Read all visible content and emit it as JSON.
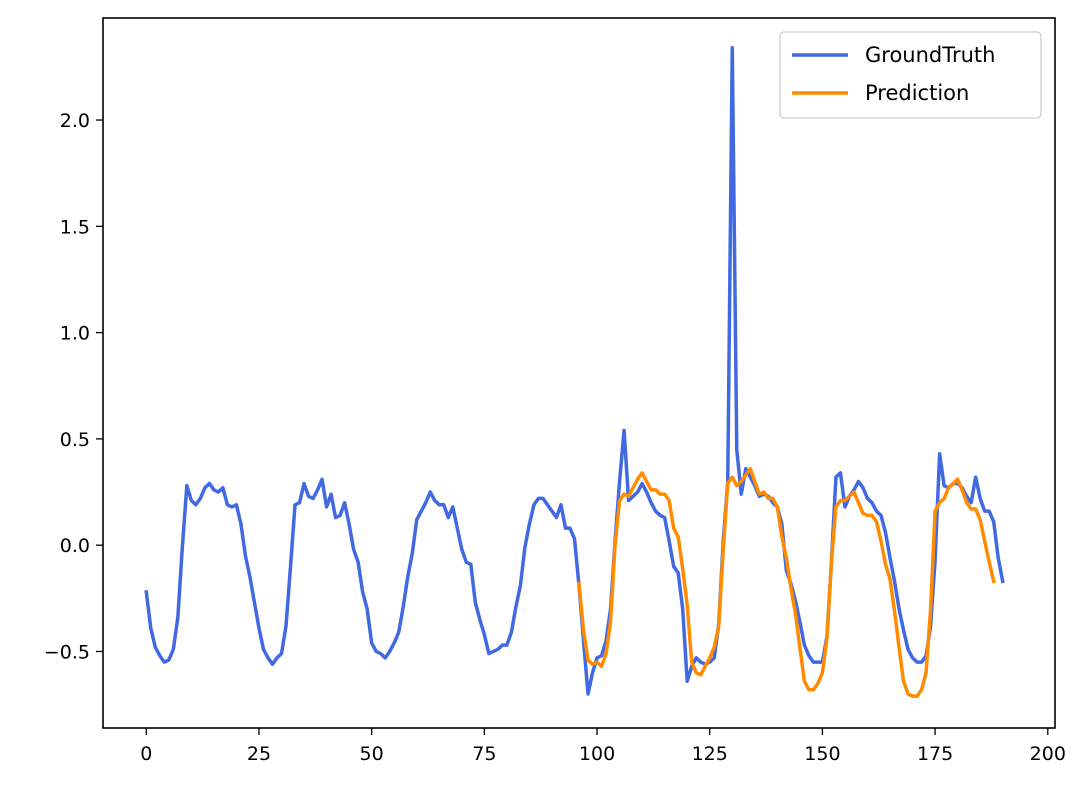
{
  "chart_data": {
    "type": "line",
    "title": "",
    "xlabel": "",
    "ylabel": "",
    "xlim": [
      -9.6,
      201.6
    ],
    "ylim": [
      -0.86,
      2.48
    ],
    "xticks": [
      0,
      25,
      50,
      75,
      100,
      125,
      150,
      175,
      200
    ],
    "yticks": [
      -0.5,
      0.0,
      0.5,
      1.0,
      1.5,
      2.0
    ],
    "xtick_labels": [
      "0",
      "25",
      "50",
      "75",
      "100",
      "125",
      "150",
      "175",
      "200"
    ],
    "ytick_labels": [
      "−0.5",
      "0.0",
      "0.5",
      "1.0",
      "1.5",
      "2.0"
    ],
    "grid": false,
    "legend_position": "top-right",
    "series": [
      {
        "name": "GroundTruth",
        "color": "#4169e1",
        "x_start": 0,
        "values": [
          -0.22,
          -0.39,
          -0.48,
          -0.52,
          -0.55,
          -0.54,
          -0.49,
          -0.34,
          -0.01,
          0.28,
          0.21,
          0.19,
          0.22,
          0.27,
          0.29,
          0.26,
          0.25,
          0.27,
          0.19,
          0.18,
          0.19,
          0.1,
          -0.05,
          -0.15,
          -0.27,
          -0.39,
          -0.49,
          -0.53,
          -0.56,
          -0.53,
          -0.51,
          -0.38,
          -0.1,
          0.19,
          0.2,
          0.29,
          0.23,
          0.22,
          0.26,
          0.31,
          0.18,
          0.24,
          0.13,
          0.14,
          0.2,
          0.1,
          -0.02,
          -0.08,
          -0.22,
          -0.3,
          -0.46,
          -0.5,
          -0.51,
          -0.53,
          -0.5,
          -0.46,
          -0.41,
          -0.29,
          -0.15,
          -0.04,
          0.12,
          0.16,
          0.2,
          0.25,
          0.21,
          0.19,
          0.19,
          0.13,
          0.18,
          0.08,
          -0.02,
          -0.08,
          -0.09,
          -0.27,
          -0.35,
          -0.42,
          -0.51,
          -0.5,
          -0.49,
          -0.47,
          -0.47,
          -0.41,
          -0.29,
          -0.19,
          -0.01,
          0.1,
          0.19,
          0.22,
          0.22,
          0.19,
          0.16,
          0.13,
          0.19,
          0.08,
          0.08,
          0.03,
          -0.19,
          -0.45,
          -0.7,
          -0.6,
          -0.53,
          -0.52,
          -0.45,
          -0.3,
          0.02,
          0.3,
          0.54,
          0.21,
          0.23,
          0.25,
          0.29,
          0.25,
          0.2,
          0.16,
          0.14,
          0.13,
          0.02,
          -0.1,
          -0.13,
          -0.3,
          -0.64,
          -0.57,
          -0.53,
          -0.55,
          -0.56,
          -0.55,
          -0.53,
          -0.37,
          0.02,
          0.3,
          2.34,
          0.45,
          0.24,
          0.36,
          0.32,
          0.28,
          0.23,
          0.24,
          0.23,
          0.2,
          0.18,
          0.1,
          -0.12,
          -0.18,
          -0.26,
          -0.36,
          -0.47,
          -0.52,
          -0.55,
          -0.55,
          -0.55,
          -0.43,
          -0.08,
          0.32,
          0.34,
          0.18,
          0.23,
          0.26,
          0.3,
          0.27,
          0.22,
          0.2,
          0.16,
          0.14,
          0.06,
          -0.06,
          -0.17,
          -0.3,
          -0.4,
          -0.49,
          -0.53,
          -0.55,
          -0.55,
          -0.52,
          -0.38,
          -0.07,
          0.43,
          0.28,
          0.27,
          0.29,
          0.29,
          0.27,
          0.23,
          0.2,
          0.32,
          0.22,
          0.16,
          0.16,
          0.11,
          -0.06,
          -0.17
        ]
      },
      {
        "name": "Prediction",
        "color": "#ff8c00",
        "x_start": 96,
        "values": [
          -0.18,
          -0.4,
          -0.54,
          -0.56,
          -0.55,
          -0.57,
          -0.51,
          -0.36,
          0.0,
          0.21,
          0.24,
          0.23,
          0.27,
          0.31,
          0.34,
          0.3,
          0.26,
          0.26,
          0.24,
          0.24,
          0.21,
          0.08,
          0.04,
          -0.11,
          -0.28,
          -0.55,
          -0.6,
          -0.61,
          -0.57,
          -0.53,
          -0.48,
          -0.38,
          -0.02,
          0.29,
          0.32,
          0.28,
          0.3,
          0.33,
          0.36,
          0.3,
          0.24,
          0.25,
          0.22,
          0.22,
          0.18,
          0.04,
          -0.06,
          -0.2,
          -0.32,
          -0.48,
          -0.64,
          -0.68,
          -0.68,
          -0.65,
          -0.6,
          -0.44,
          -0.08,
          0.18,
          0.21,
          0.21,
          0.23,
          0.25,
          0.2,
          0.15,
          0.14,
          0.14,
          0.11,
          0.02,
          -0.09,
          -0.16,
          -0.31,
          -0.48,
          -0.64,
          -0.7,
          -0.71,
          -0.71,
          -0.68,
          -0.6,
          -0.3,
          0.16,
          0.2,
          0.22,
          0.27,
          0.29,
          0.31,
          0.26,
          0.2,
          0.17,
          0.17,
          0.12,
          0.02,
          -0.08,
          -0.17
        ]
      }
    ]
  }
}
